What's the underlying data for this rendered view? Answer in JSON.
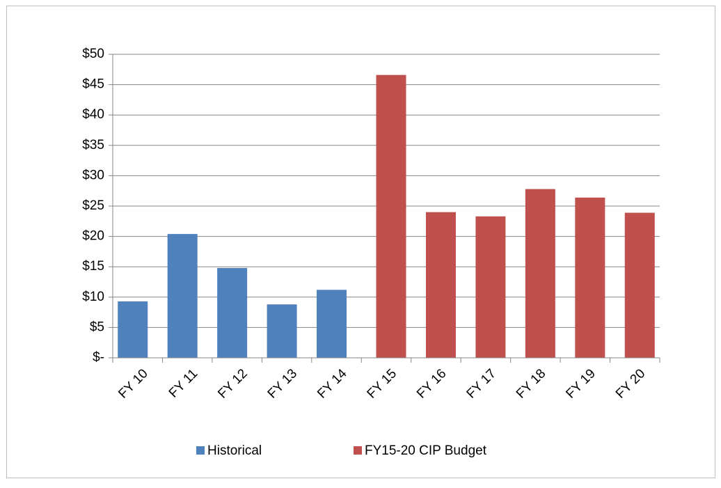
{
  "chart_data": {
    "type": "bar",
    "categories": [
      "FY 10",
      "FY 11",
      "FY 12",
      "FY 13",
      "FY 14",
      "FY 15",
      "FY 16",
      "FY 17",
      "FY 18",
      "FY 19",
      "FY 20"
    ],
    "series": [
      {
        "name": "Historical",
        "color": "#4f81bd",
        "values": [
          9.3,
          20.4,
          14.8,
          8.8,
          11.2,
          null,
          null,
          null,
          null,
          null,
          null
        ]
      },
      {
        "name": "FY15-20 CIP Budget",
        "color": "#c0504d",
        "values": [
          null,
          null,
          null,
          null,
          null,
          46.6,
          24.0,
          23.3,
          27.8,
          26.4,
          23.9
        ]
      }
    ],
    "ylim": [
      0,
      50
    ],
    "yticks": [
      {
        "value": 0,
        "label": "$-"
      },
      {
        "value": 5,
        "label": "$5"
      },
      {
        "value": 10,
        "label": "$10"
      },
      {
        "value": 15,
        "label": "$15"
      },
      {
        "value": 20,
        "label": "$20"
      },
      {
        "value": 25,
        "label": "$25"
      },
      {
        "value": 30,
        "label": "$30"
      },
      {
        "value": 35,
        "label": "$35"
      },
      {
        "value": 40,
        "label": "$40"
      },
      {
        "value": 45,
        "label": "$45"
      },
      {
        "value": 50,
        "label": "$50"
      }
    ],
    "grid": true,
    "legend": "bottom"
  }
}
